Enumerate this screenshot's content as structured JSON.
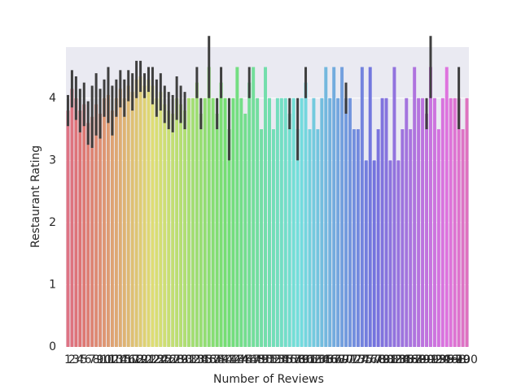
{
  "chart_data": {
    "type": "bar",
    "xlabel": "Number of Reviews",
    "ylabel": "Restaurant Rating",
    "categories": [
      1,
      2,
      3,
      4,
      5,
      6,
      7,
      8,
      9,
      10,
      11,
      12,
      13,
      14,
      15,
      16,
      17,
      18,
      19,
      20,
      21,
      22,
      23,
      24,
      25,
      26,
      27,
      28,
      29,
      30,
      31,
      32,
      33,
      34,
      35,
      36,
      37,
      38,
      39,
      40,
      41,
      42,
      43,
      44,
      45,
      46,
      47,
      48,
      49,
      50,
      51,
      52,
      53,
      54,
      55,
      56,
      57,
      58,
      59,
      60,
      61,
      62,
      63,
      64,
      65,
      66,
      67,
      68,
      69,
      70,
      71,
      72,
      73,
      74,
      75,
      76,
      77,
      78,
      79,
      80,
      81,
      82,
      83,
      84,
      85,
      86,
      87,
      88,
      89,
      90,
      91,
      92,
      93,
      94,
      95,
      96,
      97,
      98,
      99,
      100
    ],
    "values": [
      3.8,
      4.15,
      4.0,
      3.8,
      3.9,
      3.6,
      3.7,
      3.9,
      3.75,
      4.0,
      4.05,
      3.8,
      4.0,
      4.15,
      4.0,
      4.2,
      4.1,
      4.3,
      4.35,
      4.2,
      4.3,
      4.2,
      4.0,
      4.1,
      3.9,
      3.8,
      3.75,
      4.0,
      3.9,
      3.8,
      4.0,
      4.0,
      4.25,
      3.75,
      4.0,
      4.5,
      4.0,
      3.75,
      4.25,
      4.0,
      3.5,
      4.0,
      4.5,
      4.0,
      3.75,
      4.25,
      4.5,
      4.0,
      3.5,
      4.5,
      4.0,
      3.5,
      4.0,
      4.0,
      4.0,
      3.75,
      4.0,
      3.5,
      4.0,
      4.25,
      3.5,
      4.0,
      3.5,
      4.0,
      4.5,
      4.0,
      4.5,
      4.0,
      4.5,
      4.0,
      4.0,
      3.5,
      3.5,
      4.5,
      3.0,
      4.5,
      3.0,
      3.5,
      4.0,
      4.0,
      3.0,
      4.5,
      3.0,
      3.5,
      4.0,
      3.5,
      4.5,
      4.0,
      4.0,
      3.75,
      4.5,
      4.0,
      3.5,
      4.0,
      4.5,
      4.0,
      4.0,
      4.0,
      3.5,
      4.0
    ],
    "errors": [
      0.25,
      0.3,
      0.35,
      0.35,
      0.35,
      0.35,
      0.5,
      0.5,
      0.4,
      0.3,
      0.45,
      0.4,
      0.3,
      0.3,
      0.3,
      0.25,
      0.3,
      0.3,
      0.25,
      0.2,
      0.2,
      0.3,
      0.3,
      0.3,
      0.3,
      0.3,
      0.3,
      0.35,
      0.3,
      0.3,
      null,
      null,
      0.25,
      0.25,
      null,
      0.5,
      null,
      0.25,
      0.25,
      null,
      0.5,
      null,
      null,
      null,
      null,
      0.25,
      null,
      null,
      null,
      null,
      null,
      null,
      null,
      null,
      null,
      0.25,
      null,
      0.5,
      null,
      0.25,
      null,
      null,
      null,
      null,
      null,
      null,
      null,
      null,
      null,
      0.25,
      null,
      null,
      null,
      null,
      null,
      null,
      null,
      null,
      null,
      null,
      null,
      null,
      null,
      null,
      null,
      null,
      null,
      null,
      null,
      0.25,
      0.5,
      null,
      null,
      null,
      null,
      null,
      null,
      0.5,
      null,
      null
    ],
    "palette": "husl",
    "ylim": [
      0,
      4.82
    ],
    "yticks": [
      0,
      1,
      2,
      3,
      4
    ],
    "grid": true
  }
}
